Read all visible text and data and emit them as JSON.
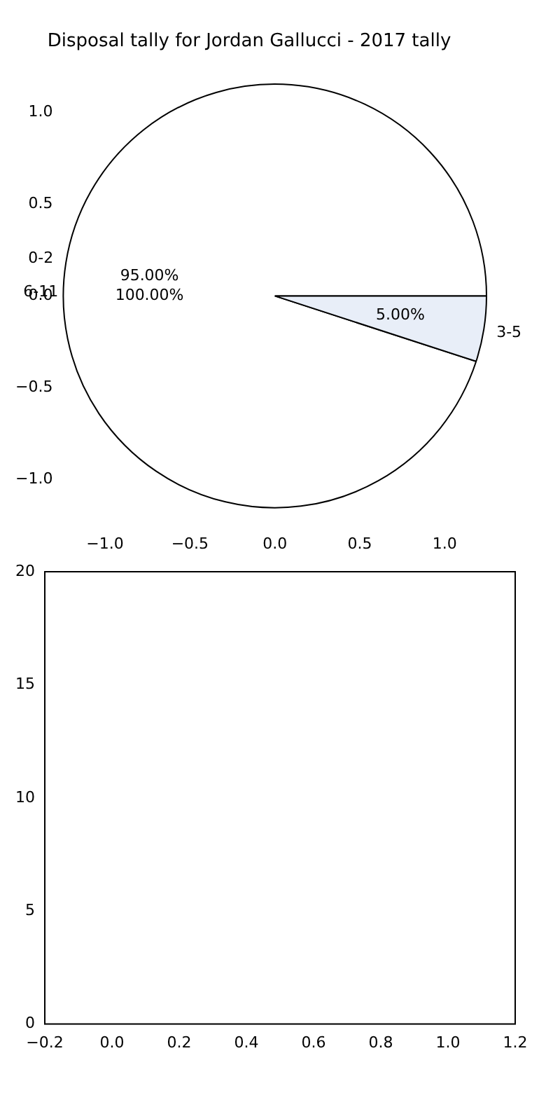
{
  "chart_data": [
    {
      "type": "pie",
      "title": "Disposal tally for Jordan Gallucci - 2017 tally",
      "categories": [
        "0-2",
        "3-5"
      ],
      "values": [
        95,
        5
      ],
      "colors": [
        "#ffffff",
        "#e8eef8"
      ],
      "value_labels": [
        "95.00%",
        "5.00%"
      ],
      "annotations": [
        "6-11",
        "100.00%",
        "−1.0",
        "−0.5",
        "0.0",
        "0.5",
        "1.0",
        "1.0",
        "0.5",
        "0.0",
        "−0.5",
        "−1.0"
      ]
    },
    {
      "type": "scatter",
      "xlim": [
        -0.2,
        1.2
      ],
      "ylim": [
        0,
        20
      ],
      "xticks": [
        {
          "value": -0.2,
          "label": "−0.2"
        },
        {
          "value": 0,
          "label": "0.0"
        },
        {
          "value": 0.2,
          "label": "0.2"
        },
        {
          "value": 0.4,
          "label": "0.4"
        },
        {
          "value": 0.6,
          "label": "0.6"
        },
        {
          "value": 0.8,
          "label": "0.8"
        },
        {
          "value": 1,
          "label": "1.0"
        },
        {
          "value": 1.2,
          "label": "1.2"
        }
      ],
      "yticks": [
        0,
        5,
        10,
        15,
        20
      ]
    }
  ]
}
